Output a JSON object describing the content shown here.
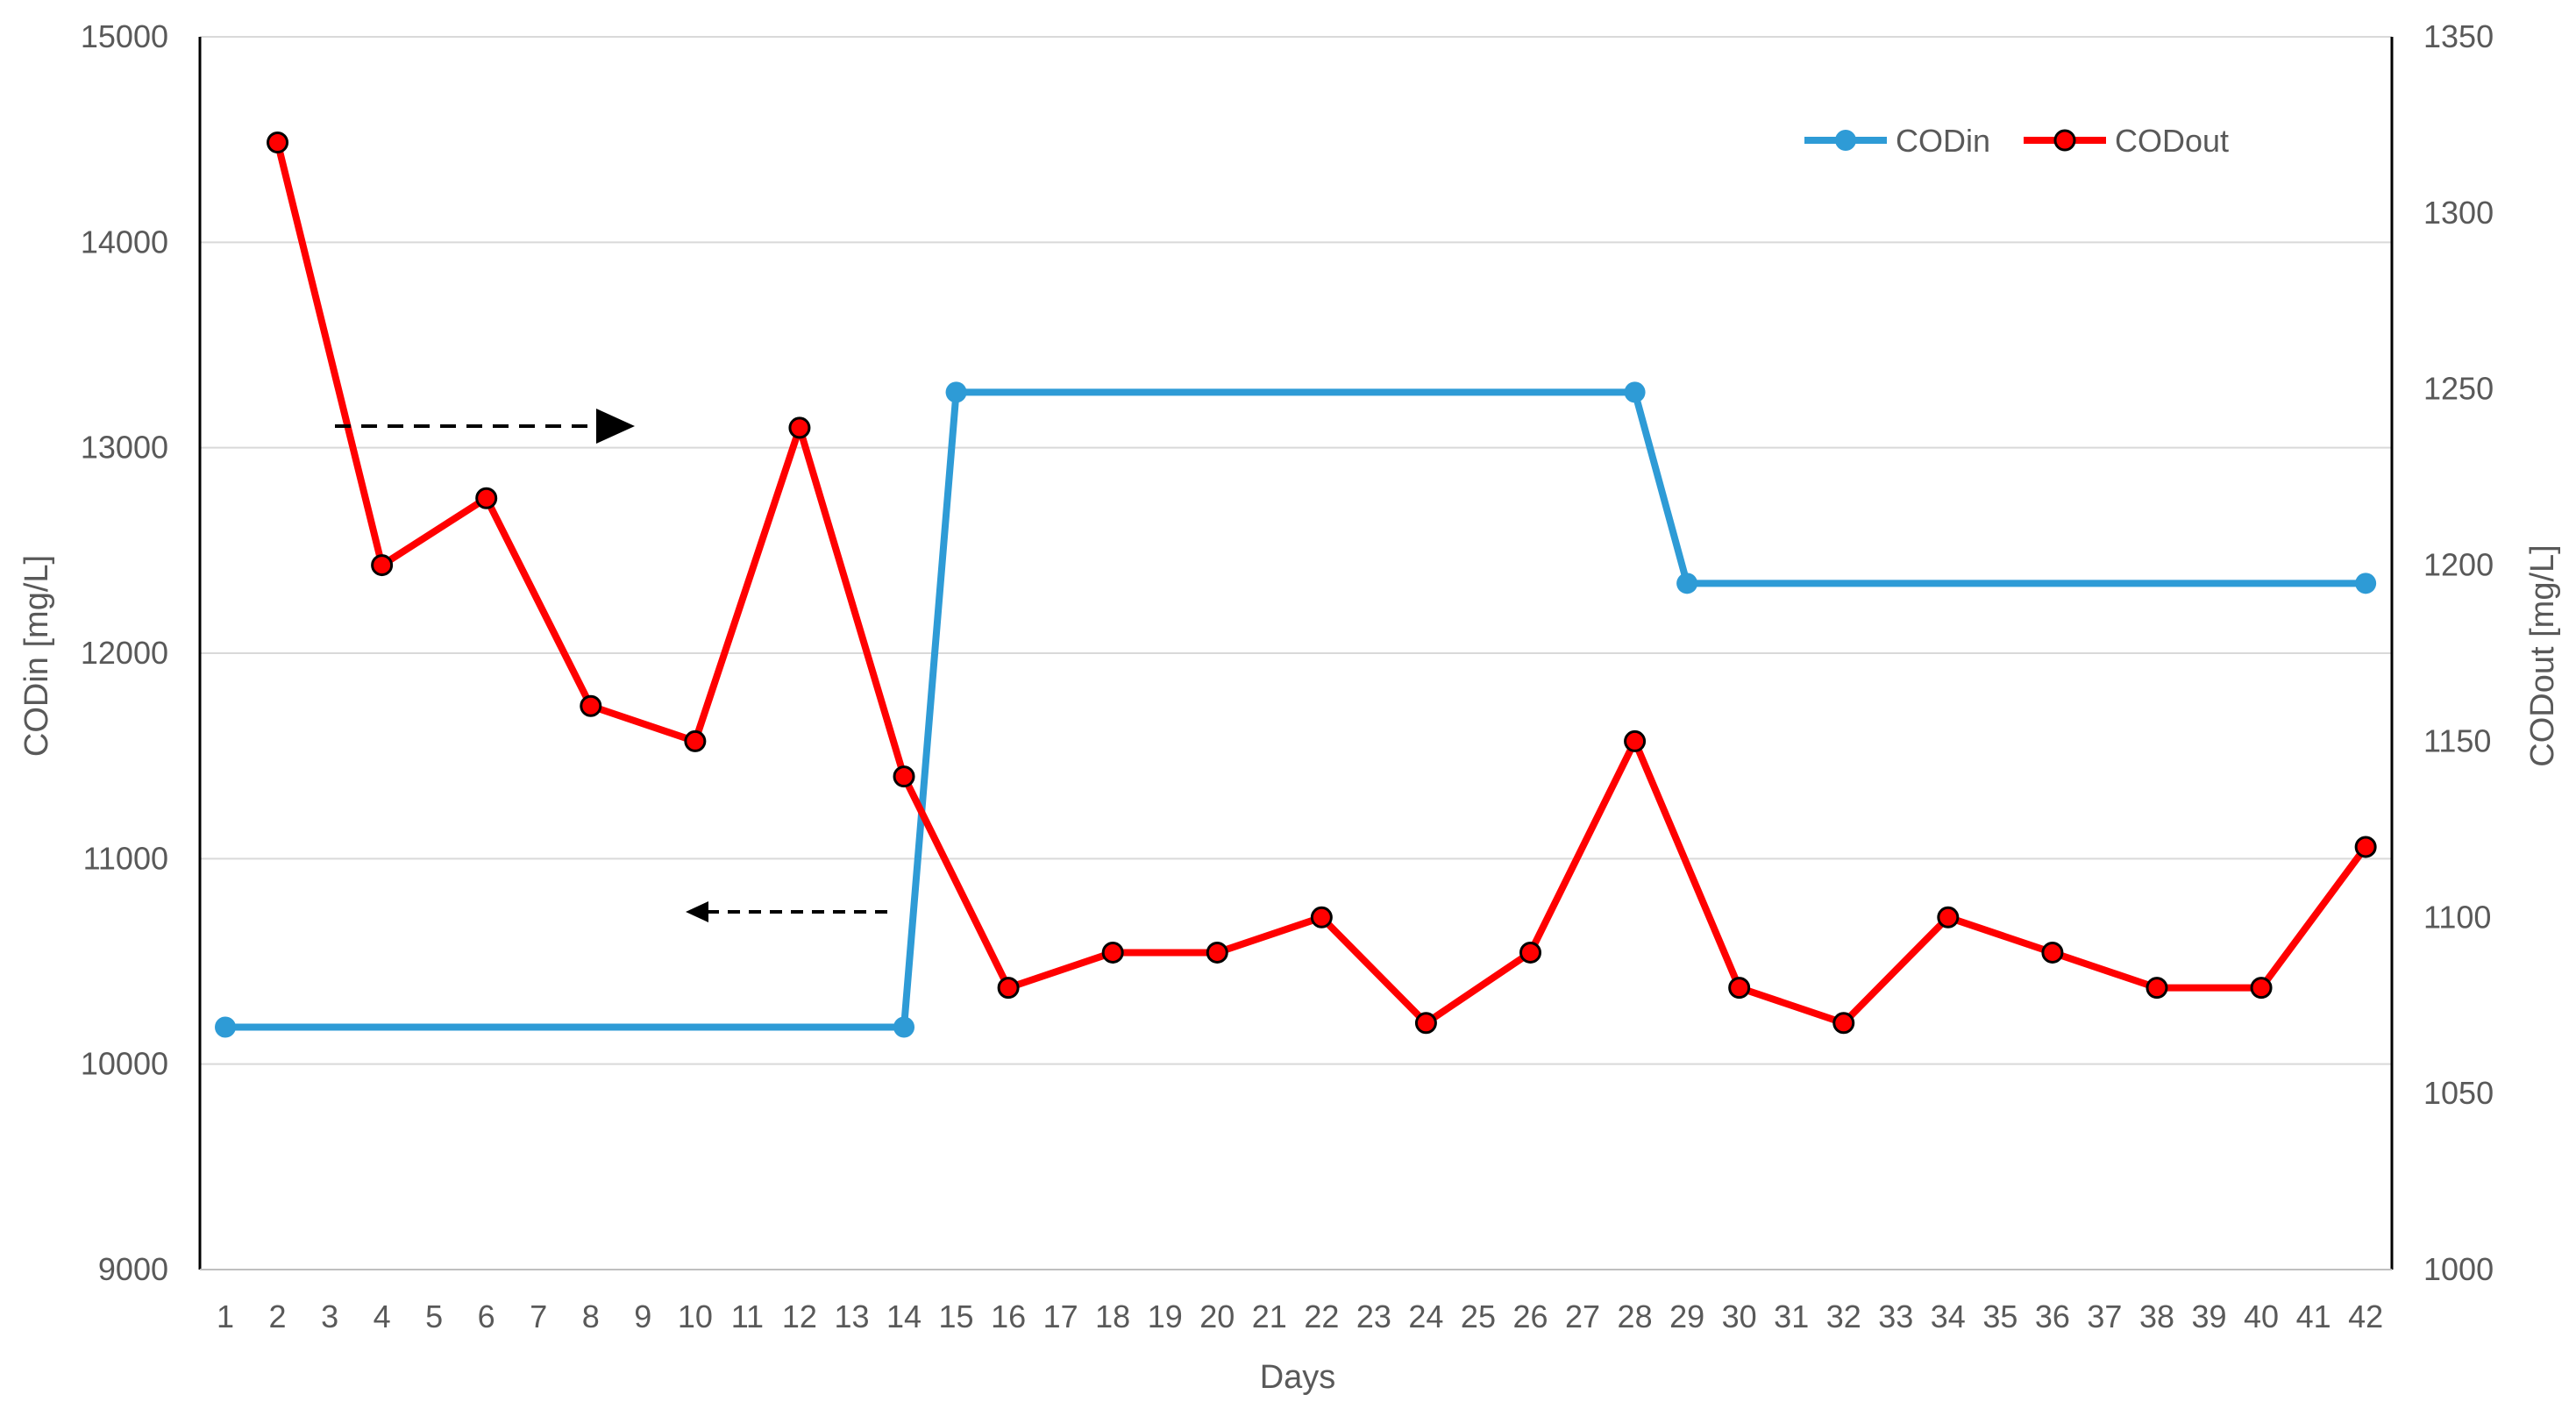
{
  "chart_data": {
    "type": "line",
    "xlabel": "Days",
    "ylabel": "CODin [mg/L]",
    "y2label": "CODout [mg/L]",
    "ylim": [
      9000,
      15000
    ],
    "y2lim": [
      1000,
      1350
    ],
    "grid": true,
    "legend_position": "top-right",
    "x_ticks": [
      1,
      2,
      3,
      4,
      5,
      6,
      7,
      8,
      9,
      10,
      11,
      12,
      13,
      14,
      15,
      16,
      17,
      18,
      19,
      20,
      21,
      22,
      23,
      24,
      25,
      26,
      27,
      28,
      29,
      30,
      31,
      32,
      33,
      34,
      35,
      36,
      37,
      38,
      39,
      40,
      41,
      42
    ],
    "y_ticks": [
      9000,
      10000,
      11000,
      12000,
      13000,
      14000,
      15000
    ],
    "y2_ticks": [
      1000,
      1050,
      1100,
      1150,
      1200,
      1250,
      1300,
      1350
    ],
    "series": [
      {
        "name": "CODin",
        "axis": "left",
        "color": "#2E9BD6",
        "x": [
          1,
          14,
          15,
          28,
          29,
          42
        ],
        "y": [
          10180,
          10180,
          13270,
          13270,
          12340,
          12340
        ]
      },
      {
        "name": "CODout",
        "axis": "right",
        "color": "#FF0000",
        "marker_color": "#FF0000",
        "x": [
          2,
          4,
          6,
          8,
          10,
          12,
          14,
          16,
          18,
          20,
          22,
          24,
          26,
          28,
          30,
          32,
          34,
          36,
          38,
          40,
          42
        ],
        "y": [
          1320,
          1200,
          1219,
          1160,
          1150,
          1239,
          1140,
          1080,
          1090,
          1090,
          1100,
          1070,
          1090,
          1150,
          1080,
          1070,
          1100,
          1090,
          1080,
          1080,
          1120
        ]
      }
    ],
    "annotations": [
      {
        "type": "arrow",
        "direction": "right",
        "style": "dashed",
        "refers_to": "CODout"
      },
      {
        "type": "arrow",
        "direction": "left",
        "style": "dashed",
        "refers_to": "CODin"
      }
    ]
  }
}
